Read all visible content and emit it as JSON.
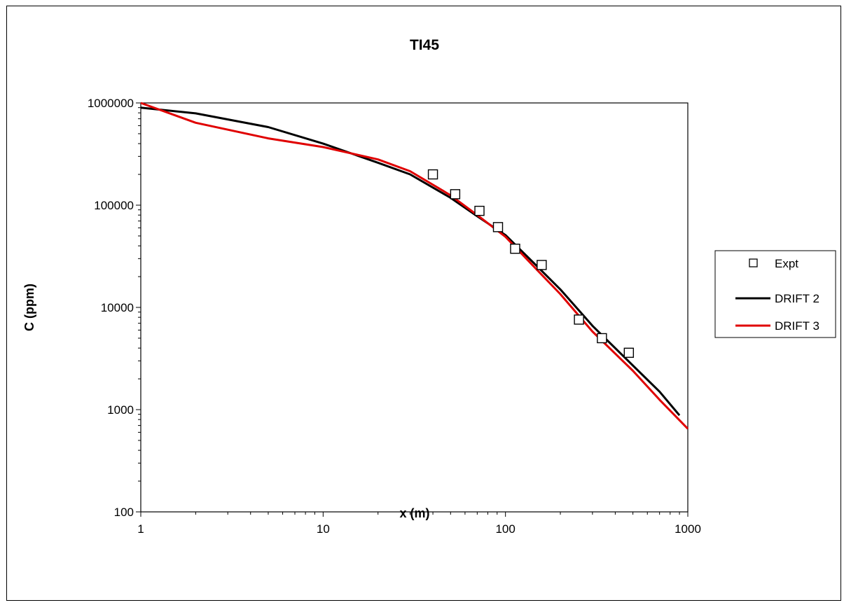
{
  "chart_data": {
    "type": "line",
    "title": "TI45",
    "xlabel": "x (m)",
    "ylabel": "C (ppm)",
    "xscale": "log",
    "yscale": "log",
    "xlim": [
      1,
      1000
    ],
    "ylim": [
      100,
      1000000
    ],
    "x_ticks": [
      "1",
      "10",
      "100",
      "1000"
    ],
    "y_ticks": [
      "100",
      "1000",
      "10000",
      "100000",
      "1000000"
    ],
    "grid": false,
    "legend_position": "right",
    "series": [
      {
        "name": "Expt",
        "style": "markers",
        "marker": "open-square",
        "color": "#000000",
        "points": [
          [
            40,
            200000
          ],
          [
            53,
            128000
          ],
          [
            72,
            88000
          ],
          [
            91,
            61000
          ],
          [
            113,
            37500
          ],
          [
            158,
            26000
          ],
          [
            253,
            7600
          ],
          [
            338,
            5000
          ],
          [
            475,
            3600
          ]
        ]
      },
      {
        "name": "DRIFT 2",
        "style": "line",
        "color": "#000000",
        "points": [
          [
            1,
            900000
          ],
          [
            2,
            790000
          ],
          [
            5,
            580000
          ],
          [
            10,
            400000
          ],
          [
            20,
            260000
          ],
          [
            30,
            200000
          ],
          [
            50,
            118000
          ],
          [
            70,
            78000
          ],
          [
            100,
            51000
          ],
          [
            150,
            25000
          ],
          [
            200,
            15000
          ],
          [
            300,
            6600
          ],
          [
            500,
            2700
          ],
          [
            700,
            1500
          ],
          [
            900,
            880
          ]
        ]
      },
      {
        "name": "DRIFT 3",
        "style": "line",
        "color": "#e00000",
        "points": [
          [
            1,
            1000000
          ],
          [
            2,
            640000
          ],
          [
            5,
            450000
          ],
          [
            10,
            370000
          ],
          [
            20,
            280000
          ],
          [
            30,
            215000
          ],
          [
            50,
            125000
          ],
          [
            70,
            80000
          ],
          [
            100,
            49000
          ],
          [
            150,
            23000
          ],
          [
            200,
            13500
          ],
          [
            300,
            5800
          ],
          [
            500,
            2400
          ],
          [
            700,
            1250
          ],
          [
            1000,
            650
          ]
        ]
      }
    ]
  }
}
